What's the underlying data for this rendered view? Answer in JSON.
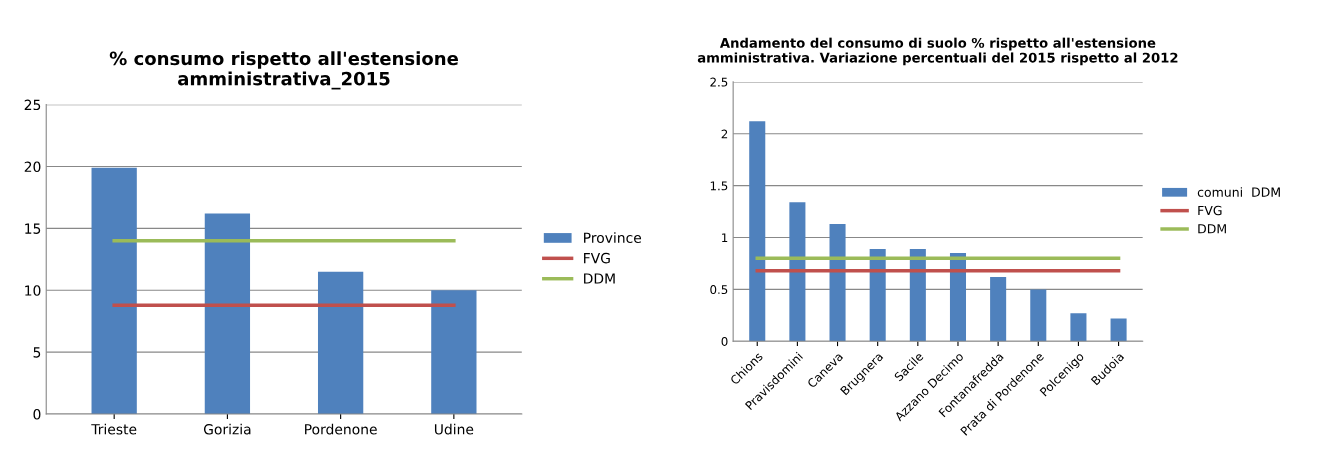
{
  "chart_data": [
    {
      "type": "bar",
      "title": "% consumo rispetto all'estensione\namministrativa_2015",
      "categories": [
        "Trieste",
        "Gorizia",
        "Pordenone",
        "Udine"
      ],
      "series": [
        {
          "name": "Province",
          "color": "#4f81bd",
          "values": [
            19.9,
            16.2,
            11.5,
            10.0
          ]
        },
        {
          "name": "FVG",
          "type": "line",
          "color": "#c0504d",
          "values": [
            8.8,
            8.8,
            8.8,
            8.8
          ]
        },
        {
          "name": "DDM",
          "type": "line",
          "color": "#9bbb59",
          "values": [
            14.0,
            14.0,
            14.0,
            14.0
          ]
        }
      ],
      "ylim": [
        0,
        25
      ],
      "yticks": [
        0,
        5,
        10,
        15,
        20,
        25
      ],
      "grid": "y",
      "legend": "right"
    },
    {
      "type": "bar",
      "title": "Andamento del consumo di suolo % rispetto all'estensione\namministrativa. Variazione percentuali del 2015 rispetto al 2012",
      "categories": [
        "Chions",
        "Pravisdomini",
        "Caneva",
        "Brugnera",
        "Sacile",
        "Azzano Decimo",
        "Fontanafredda",
        "Prata di Pordenone",
        "Polcenigo",
        "Budoia"
      ],
      "series": [
        {
          "name": "comuni  DDM",
          "color": "#4f81bd",
          "values": [
            2.12,
            1.34,
            1.13,
            0.89,
            0.89,
            0.85,
            0.62,
            0.5,
            0.27,
            0.22
          ]
        },
        {
          "name": "FVG",
          "type": "line",
          "color": "#c0504d",
          "values": [
            0.68,
            0.68,
            0.68,
            0.68,
            0.68,
            0.68,
            0.68,
            0.68,
            0.68,
            0.68
          ]
        },
        {
          "name": "DDM",
          "type": "line",
          "color": "#9bbb59",
          "values": [
            0.8,
            0.8,
            0.8,
            0.8,
            0.8,
            0.8,
            0.8,
            0.8,
            0.8,
            0.8
          ]
        }
      ],
      "ylim": [
        0,
        2.5
      ],
      "yticks": [
        0,
        0.5,
        1,
        1.5,
        2,
        2.5
      ],
      "grid": "y",
      "legend": "right"
    }
  ]
}
